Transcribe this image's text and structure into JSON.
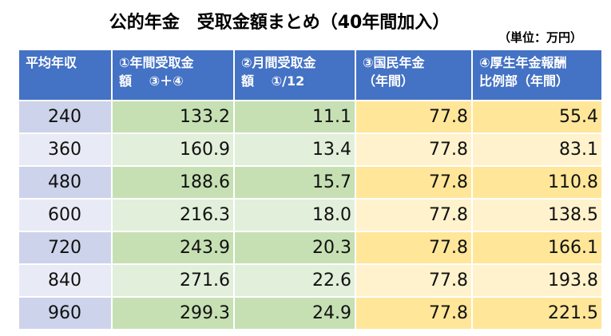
{
  "title": "公的年金　受取金額まとめ（40年間加入）",
  "unit": "（単位：万円）",
  "headers": [
    "平均年収",
    "①年間受取金\n額　 ③＋④",
    "②月間受取金\n額　 ①/12",
    "③国民年金\n（年間）",
    "④厚生年金報酬\n比例部（年間）"
  ],
  "rows": [
    [
      "240",
      "133.2",
      "11.1",
      "77.8",
      "55.4"
    ],
    [
      "360",
      "160.9",
      "13.4",
      "77.8",
      "83.1"
    ],
    [
      "480",
      "188.6",
      "15.7",
      "77.8",
      "110.8"
    ],
    [
      "600",
      "216.3",
      "18.0",
      "77.8",
      "138.5"
    ],
    [
      "720",
      "243.9",
      "20.3",
      "77.8",
      "166.1"
    ],
    [
      "840",
      "271.6",
      "22.6",
      "77.8",
      "193.8"
    ],
    [
      "960",
      "299.3",
      "24.9",
      "77.8",
      "221.5"
    ]
  ],
  "colors": {
    "header_bg": "#4472c4",
    "year_dark": "#cdd3ea",
    "year_light": "#e8ebf5",
    "green_dark": "#c6e0b4",
    "green_light": "#e2efda",
    "yellow_dark": "#ffe699",
    "yellow_light": "#fff2cc"
  }
}
